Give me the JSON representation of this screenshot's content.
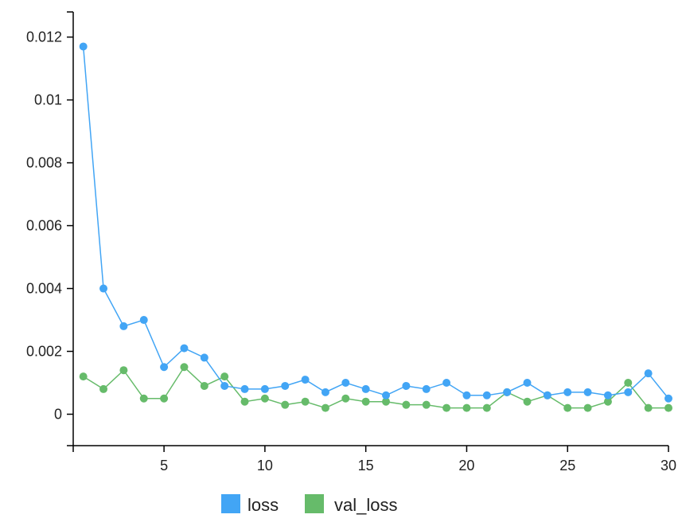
{
  "chart_data": {
    "type": "line",
    "title": "",
    "xlabel": "",
    "ylabel": "",
    "xlim": [
      0.5,
      30
    ],
    "ylim": [
      -0.001,
      0.0128
    ],
    "x_ticks": [
      5,
      10,
      15,
      20,
      25,
      30
    ],
    "x_tick_labels": [
      "5",
      "10",
      "15",
      "20",
      "25",
      "30"
    ],
    "y_ticks": [
      0,
      0.002,
      0.004,
      0.006,
      0.008,
      0.01,
      0.012
    ],
    "y_tick_labels": [
      "0",
      "0.002",
      "0.004",
      "0.006",
      "0.008",
      "0.01",
      "0.012"
    ],
    "grid": false,
    "legend_position": "bottom",
    "x": [
      1,
      2,
      3,
      4,
      5,
      6,
      7,
      8,
      9,
      10,
      11,
      12,
      13,
      14,
      15,
      16,
      17,
      18,
      19,
      20,
      21,
      22,
      23,
      24,
      25,
      26,
      27,
      28,
      29,
      30
    ],
    "series": [
      {
        "name": "loss",
        "color": "#42a5f5",
        "values": [
          0.0117,
          0.004,
          0.0028,
          0.003,
          0.0015,
          0.0021,
          0.0018,
          0.0009,
          0.0008,
          0.0008,
          0.0009,
          0.0011,
          0.0007,
          0.001,
          0.0008,
          0.0006,
          0.0009,
          0.0008,
          0.001,
          0.0006,
          0.0006,
          0.0007,
          0.001,
          0.0006,
          0.0007,
          0.0007,
          0.0006,
          0.0007,
          0.0013,
          0.0005
        ]
      },
      {
        "name": "val_loss",
        "color": "#66bb6a",
        "values": [
          0.0012,
          0.0008,
          0.0014,
          0.0005,
          0.0005,
          0.0015,
          0.0009,
          0.0012,
          0.0004,
          0.0005,
          0.0003,
          0.0004,
          0.0002,
          0.0005,
          0.0004,
          0.0004,
          0.0003,
          0.0003,
          0.0002,
          0.0002,
          0.0002,
          0.0007,
          0.0004,
          0.0006,
          0.0002,
          0.0002,
          0.0004,
          0.001,
          0.0002,
          0.0002
        ]
      }
    ]
  }
}
